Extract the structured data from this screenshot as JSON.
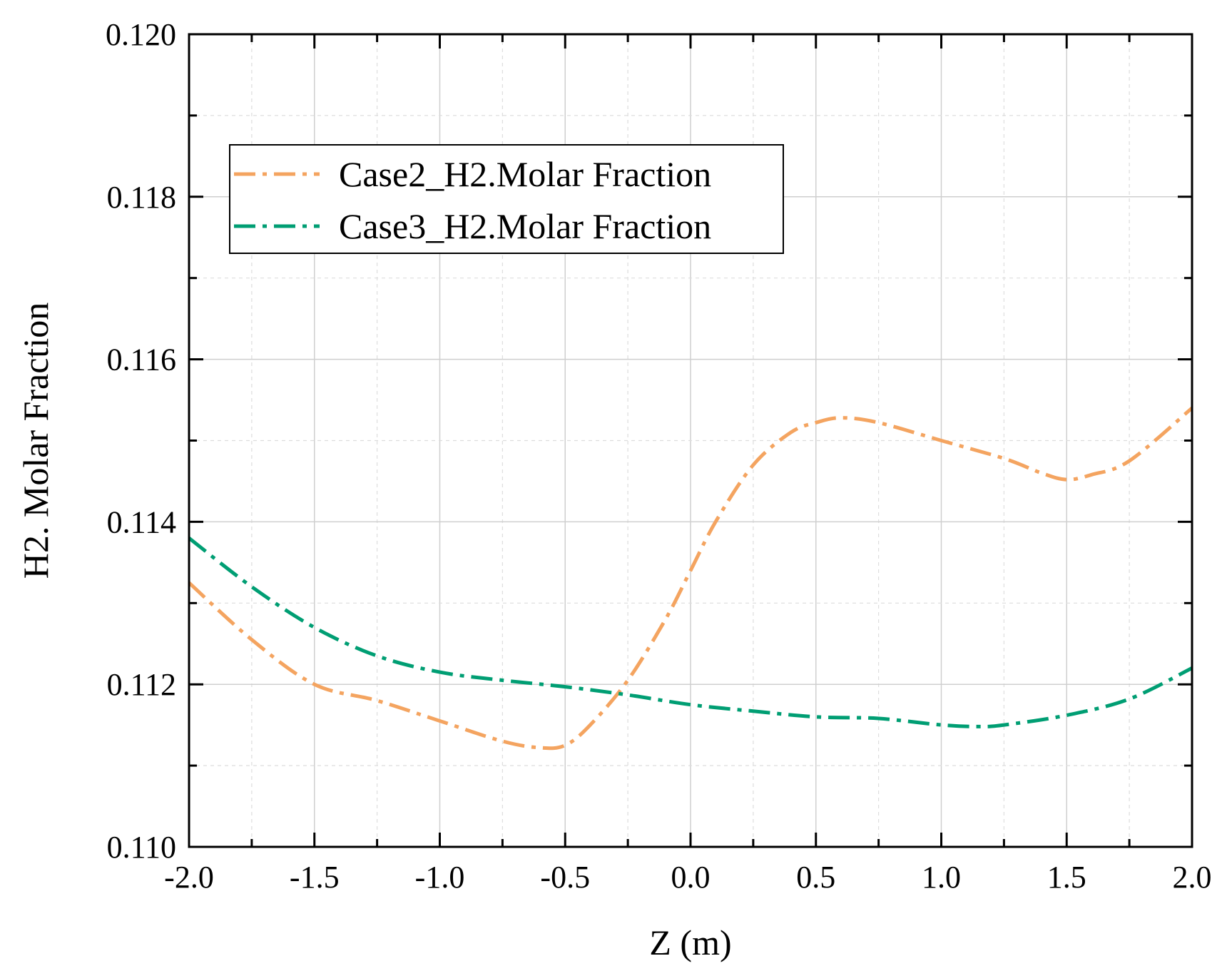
{
  "chart_data": {
    "type": "line",
    "title": "",
    "xlabel": "Z (m)",
    "ylabel": "H2. Molar Fraction",
    "xlim": [
      -2.0,
      2.0
    ],
    "ylim": [
      0.11,
      0.12
    ],
    "x_ticks": [
      -2.0,
      -1.5,
      -1.0,
      -0.5,
      0.0,
      0.5,
      1.0,
      1.5,
      2.0
    ],
    "x_tick_labels": [
      "-2.0",
      "-1.5",
      "-1.0",
      "-0.5",
      "0.0",
      "0.5",
      "1.0",
      "1.5",
      "2.0"
    ],
    "y_ticks": [
      0.11,
      0.112,
      0.114,
      0.116,
      0.118,
      0.12
    ],
    "y_tick_labels": [
      "0.110",
      "0.112",
      "0.114",
      "0.116",
      "0.118",
      "0.120"
    ],
    "grid": true,
    "legend_position": "top-left",
    "series": [
      {
        "name": "Case2_H2.Molar Fraction",
        "color": "#F4A460",
        "x": [
          -2.0,
          -1.75,
          -1.5,
          -1.25,
          -1.0,
          -0.75,
          -0.6,
          -0.5,
          -0.4,
          -0.25,
          -0.1,
          0.0,
          0.1,
          0.25,
          0.4,
          0.5,
          0.6,
          0.75,
          1.0,
          1.25,
          1.4,
          1.5,
          1.6,
          1.75,
          2.0
        ],
        "y": [
          0.11325,
          0.11255,
          0.112,
          0.1118,
          0.11155,
          0.1113,
          0.11122,
          0.11125,
          0.1115,
          0.11205,
          0.1128,
          0.1134,
          0.114,
          0.1147,
          0.1151,
          0.11522,
          0.11528,
          0.11522,
          0.115,
          0.11478,
          0.1146,
          0.11452,
          0.11458,
          0.11475,
          0.1154
        ]
      },
      {
        "name": "Case3_H2.Molar Fraction",
        "color": "#009E73",
        "x": [
          -2.0,
          -1.75,
          -1.5,
          -1.25,
          -1.0,
          -0.75,
          -0.5,
          -0.25,
          0.0,
          0.25,
          0.5,
          0.75,
          1.0,
          1.15,
          1.25,
          1.5,
          1.75,
          2.0
        ],
        "y": [
          0.1138,
          0.1132,
          0.1127,
          0.11235,
          0.11215,
          0.11205,
          0.11197,
          0.11187,
          0.11175,
          0.11167,
          0.1116,
          0.11158,
          0.1115,
          0.11148,
          0.1115,
          0.11162,
          0.11182,
          0.1122
        ]
      }
    ]
  }
}
